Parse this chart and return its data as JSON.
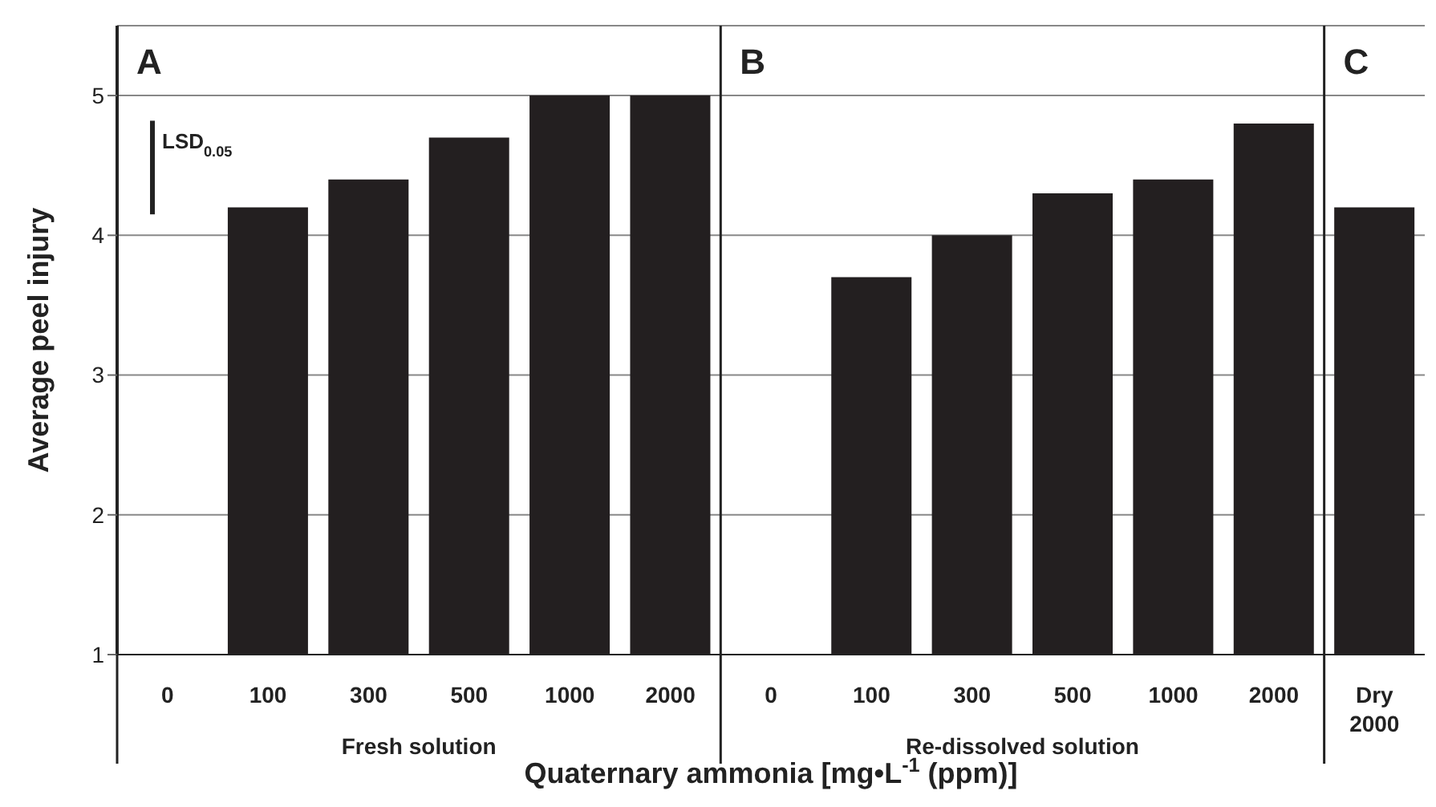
{
  "chart_data": {
    "type": "bar",
    "categories": [
      "0",
      "100",
      "300",
      "500",
      "1000",
      "2000",
      "0",
      "100",
      "300",
      "500",
      "1000",
      "2000",
      "Dry\n2000"
    ],
    "values": [
      null,
      4.2,
      4.4,
      4.7,
      5.0,
      5.0,
      null,
      3.7,
      4.0,
      4.3,
      4.4,
      4.8,
      4.2
    ],
    "color": "#231f20",
    "ylabel": "Average peel injury",
    "xlabel": "Quaternary ammonia [mg•L$^{-1}$ (ppm)]",
    "ylim": [
      1,
      5.5
    ],
    "yticks": [
      1,
      2,
      3,
      4,
      5
    ],
    "grid": "y",
    "annotations": [
      "A",
      "B",
      "C",
      "Fresh solution",
      "Re-dissolved solution",
      "LSD$_{0.05}$"
    ]
  }
}
